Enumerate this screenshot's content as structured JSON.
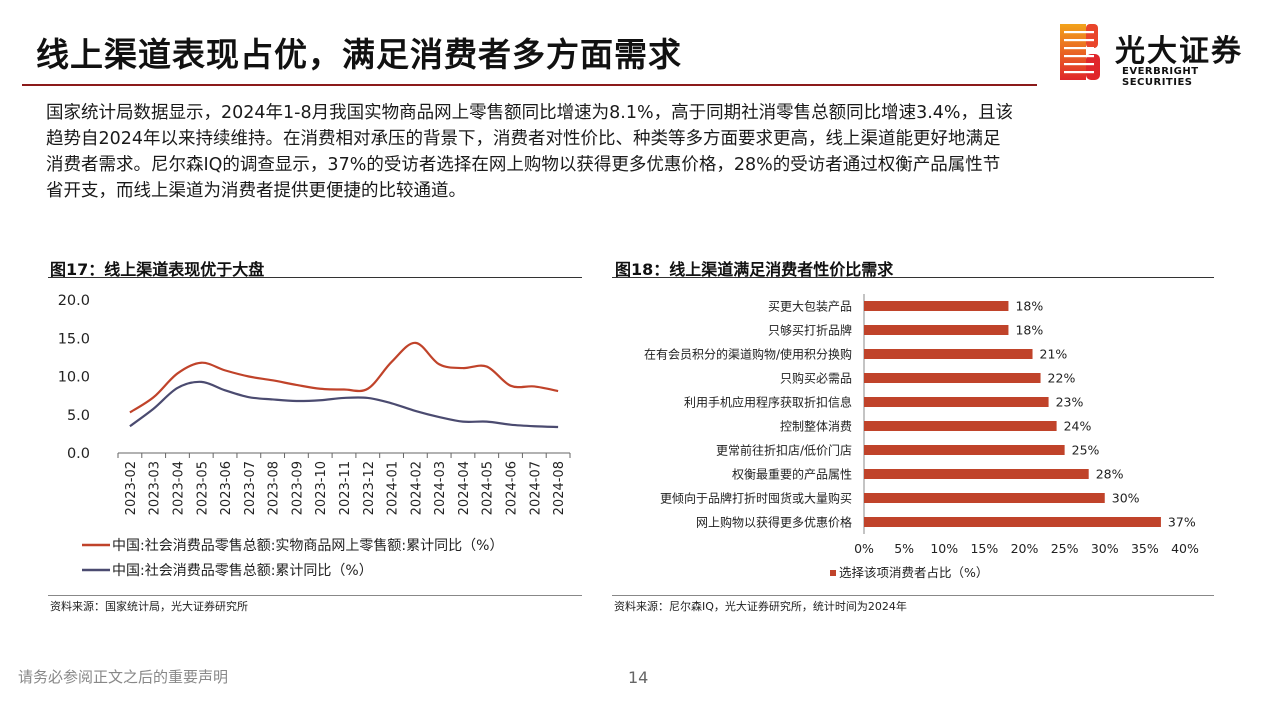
{
  "page": {
    "title": "线上渠道表现占优，满足消费者多方面需求",
    "logo_cn": "光大证券",
    "logo_en": "EVERBRIGHT SECURITIES",
    "intro_lines": [
      "国家统计局数据显示，2024年1-8月我国实物商品网上零售额同比增速为8.1%，高于同期社消零售总额同比增速3.4%，且该",
      "趋势自2024年以来持续维持。在消费相对承压的背景下，消费者对性价比、种类等多方面要求更高，线上渠道能更好地满足",
      "消费者需求。尼尔森IQ的调查显示，37%的受访者选择在网上购物以获得更多优惠价格，28%的受访者通过权衡产品属性节",
      "省开支，而线上渠道为消费者提供更便捷的比较通道。"
    ],
    "footer_left": "请务必参阅正文之后的重要声明",
    "page_number": "14",
    "colors": {
      "accent": "#c0392b",
      "series_online": "#c0432a",
      "series_total": "#4b4b70"
    }
  },
  "fig17": {
    "title": "图17：线上渠道表现优于大盘",
    "source": "资料来源：国家统计局，光大证券研究所"
  },
  "fig18": {
    "title": "图18：线上渠道满足消费者性价比需求",
    "source": "资料来源：尼尔森IQ，光大证券研究所，统计时间为2024年"
  },
  "chart_data": [
    {
      "type": "line",
      "x": [
        "2023-02",
        "2023-03",
        "2023-04",
        "2023-05",
        "2023-06",
        "2023-07",
        "2023-08",
        "2023-09",
        "2023-10",
        "2023-11",
        "2023-12",
        "2024-01",
        "2024-02",
        "2024-03",
        "2024-04",
        "2024-05",
        "2024-06",
        "2024-07",
        "2024-08"
      ],
      "series": [
        {
          "name": "中国:社会消费品零售总额:实物商品网上零售额:累计同比（%）",
          "color": "#c0432a",
          "values": [
            5.3,
            7.3,
            10.4,
            11.8,
            10.8,
            10.0,
            9.5,
            8.9,
            8.4,
            8.3,
            8.4,
            11.9,
            14.4,
            11.6,
            11.1,
            11.3,
            8.8,
            8.7,
            8.1
          ]
        },
        {
          "name": "中国:社会消费品零售总额:累计同比（%）",
          "color": "#4b4b70",
          "values": [
            3.5,
            5.8,
            8.5,
            9.3,
            8.2,
            7.3,
            7.0,
            6.8,
            6.9,
            7.2,
            7.2,
            6.5,
            5.5,
            4.7,
            4.1,
            4.1,
            3.7,
            3.5,
            3.4
          ]
        }
      ],
      "y_ticks": [
        "0.0",
        "5.0",
        "10.0",
        "15.0",
        "20.0"
      ],
      "ylim": [
        0,
        20
      ],
      "legend": "bottom",
      "grid": false
    },
    {
      "type": "bar",
      "orientation": "horizontal",
      "categories": [
        "买更大包装产品",
        "只够买打折品牌",
        "在有会员积分的渠道购物/使用积分换购",
        "只购买必需品",
        "利用手机应用程序获取折扣信息",
        "控制整体消费",
        "更常前往折扣店/低价门店",
        "权衡最重要的产品属性",
        "更倾向于品牌打折时囤货或大量购买",
        "网上购物以获得更多优惠价格"
      ],
      "values": [
        18,
        18,
        21,
        22,
        23,
        24,
        25,
        28,
        30,
        37
      ],
      "value_labels": [
        "18%",
        "18%",
        "21%",
        "22%",
        "23%",
        "24%",
        "25%",
        "28%",
        "30%",
        "37%"
      ],
      "x_ticks": [
        "0%",
        "5%",
        "10%",
        "15%",
        "20%",
        "25%",
        "30%",
        "35%",
        "40%"
      ],
      "xlim": [
        0,
        40
      ],
      "series_name": "选择该项消费者占比（%）",
      "color": "#c0432a",
      "legend": "bottom",
      "grid": false
    }
  ]
}
